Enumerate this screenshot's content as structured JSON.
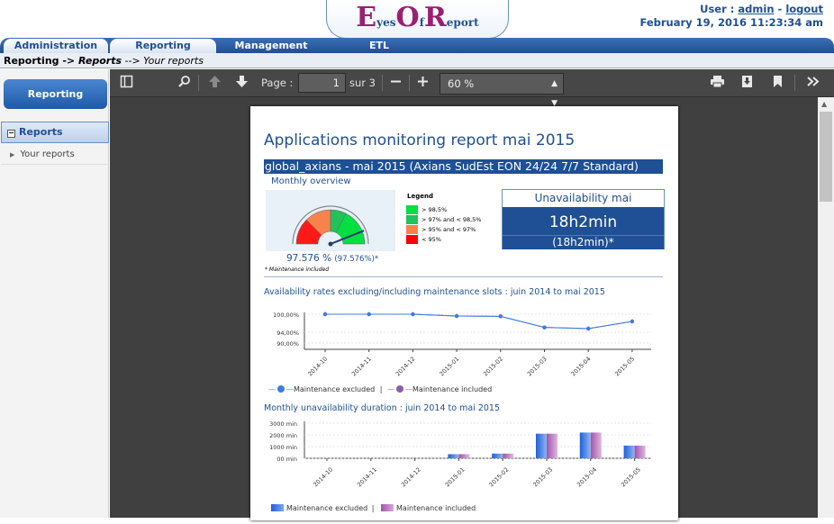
{
  "header": {
    "logo": {
      "e": "E",
      "yes": "yes",
      "o": "O",
      "f": "f",
      "r": "R",
      "eport": "eport"
    },
    "user_label": "User :",
    "user_name": "admin",
    "separator": "-",
    "logout": "logout",
    "datetime": "February 19, 2016 11:23:34 am"
  },
  "nav": {
    "tabs": [
      {
        "label": "Administration",
        "active": true
      },
      {
        "label": "Reporting",
        "active": true
      },
      {
        "label": "Management",
        "active": false
      },
      {
        "label": "ETL",
        "active": false
      }
    ]
  },
  "breadcrumb": {
    "part1": "Reporting -> ",
    "part2": "Reports",
    "part3": " --> Your reports"
  },
  "sidebar": {
    "button": "Reporting",
    "reports_toggle": "−",
    "reports": "Reports",
    "your_reports": "Your reports"
  },
  "toolbar": {
    "page_label": "Page :",
    "page_value": "1",
    "page_total": "sur 3",
    "zoom": "60 %",
    "icons": [
      "sidebar-toggle-icon",
      "search-icon",
      "previous-page-icon",
      "next-page-icon",
      "zoom-out-icon",
      "zoom-in-icon",
      "print-icon",
      "download-icon",
      "bookmark-icon",
      "tools-icon"
    ]
  },
  "report": {
    "title": "Applications monitoring report mai 2015",
    "group": "global_axians - mai 2015 (Axians SudEst EON 24/24 7/7 Standard)",
    "monthly_overview": "Monthly overview",
    "gauge_value": 97.576,
    "gauge_text": "97.576 %",
    "gauge_sub": "(97.576%)*",
    "maintenance_note": "* Maintenance included",
    "legend_title": "Legend",
    "legend": [
      {
        "label": "> 98,5%",
        "color": "#00e040"
      },
      {
        "label": "> 97% and < 98,5%",
        "color": "#22c15a"
      },
      {
        "label": "> 95% and < 97%",
        "color": "#f7824b"
      },
      {
        "label": "< 95%",
        "color": "#ff0000"
      }
    ],
    "unavail_title": "Unavailability mai",
    "unavail_value": "18h2min",
    "unavail_sub": "(18h2min)*",
    "chart1_title": "Availability rates excluding/including maintenance slots : juin 2014 to mai 2015",
    "chart2_title": "Monthly unavailability duration : juin 2014 to mai 2015",
    "legend_excluded": "Maintenance excluded",
    "legend_included": "Maintenance included",
    "legend_sep": "|"
  },
  "chart_data": [
    {
      "type": "line",
      "title": "Availability rates excluding/including maintenance slots : juin 2014 to mai 2015",
      "x": [
        "2014-10",
        "2014-11",
        "2014-12",
        "2015-01",
        "2015-02",
        "2015-03",
        "2015-04",
        "2015-05"
      ],
      "y_ticks": [
        "100,00%",
        "94,00%",
        "90,00%"
      ],
      "y_tick_values": [
        100,
        94,
        90
      ],
      "series": [
        {
          "name": "Maintenance excluded",
          "color": "#3b7de0",
          "values": [
            100,
            100,
            100,
            99.4,
            99.3,
            95.6,
            95.2,
            97.6
          ]
        },
        {
          "name": "Maintenance included",
          "color": "#8a5fa8",
          "values": [
            100,
            100,
            100,
            99.4,
            99.3,
            95.6,
            95.2,
            97.6
          ]
        }
      ],
      "legend_position": "bottom"
    },
    {
      "type": "bar",
      "title": "Monthly unavailability duration : juin 2014 to mai 2015",
      "categories": [
        "2014-10",
        "2014-11",
        "2014-12",
        "2015-01",
        "2015-02",
        "2015-03",
        "2015-04",
        "2015-05"
      ],
      "y_ticks": [
        "3000 min",
        "2000 min",
        "1000 min",
        "00 min"
      ],
      "y_tick_values": [
        3000,
        2000,
        1000,
        0
      ],
      "series": [
        {
          "name": "Maintenance excluded",
          "color": "#3b7de0",
          "values": [
            0,
            0,
            0,
            350,
            400,
            2100,
            2200,
            1082
          ]
        },
        {
          "name": "Maintenance included",
          "color": "#c080c0",
          "values": [
            0,
            0,
            0,
            350,
            400,
            2100,
            2200,
            1082
          ]
        }
      ],
      "ylim": [
        0,
        3000
      ],
      "legend_position": "bottom"
    }
  ]
}
